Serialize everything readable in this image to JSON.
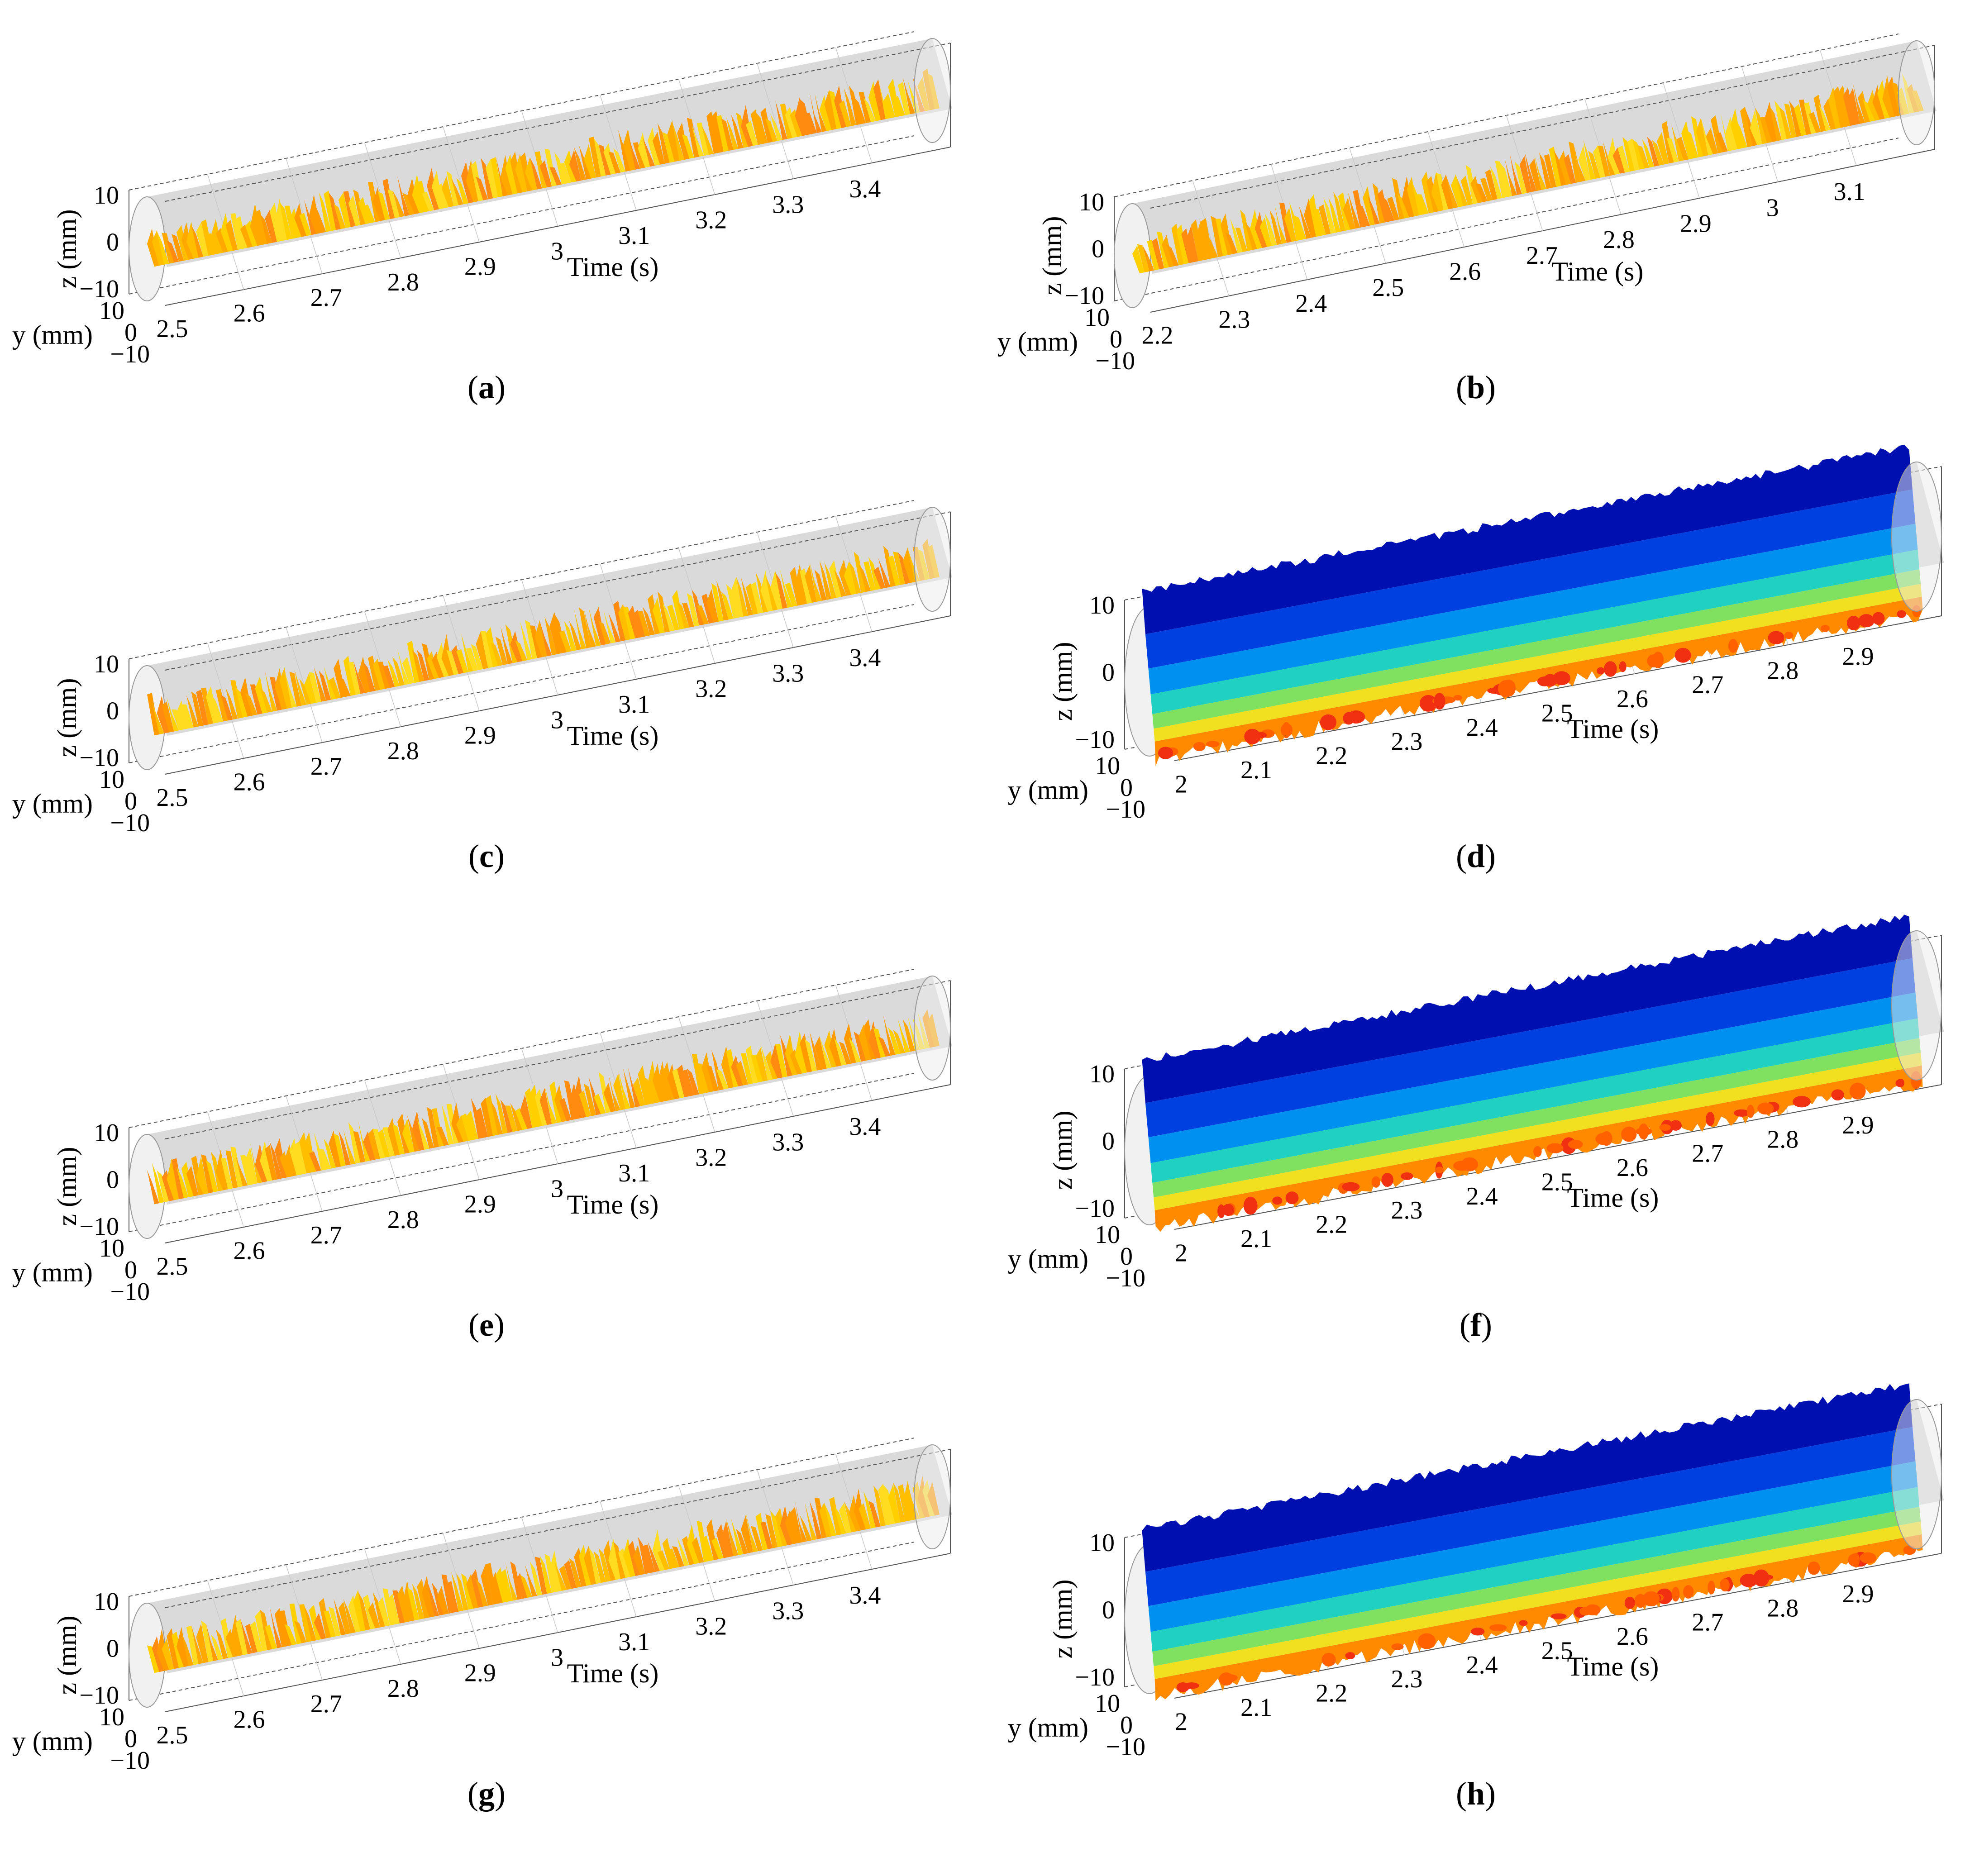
{
  "figure": {
    "panels": [
      {
        "id": "a",
        "caption_letter": "a",
        "type": "3d-surface",
        "variant": "rivulet",
        "palette": "yellow-orange",
        "time_ticks": [
          "2.5",
          "2.6",
          "2.7",
          "2.8",
          "2.9",
          "3",
          "3.1",
          "3.2",
          "3.3",
          "3.4"
        ],
        "z_ticks": [
          "10",
          "0",
          "−10"
        ],
        "y_ticks": [
          "10",
          "0",
          "−10"
        ],
        "xlabel": "Time (s)",
        "ylabel": "y (mm)",
        "zlabel": "z (mm)"
      },
      {
        "id": "b",
        "caption_letter": "b",
        "type": "3d-surface",
        "variant": "rivulet",
        "palette": "yellow-orange",
        "time_ticks": [
          "2.2",
          "2.3",
          "2.4",
          "2.5",
          "2.6",
          "2.7",
          "2.8",
          "2.9",
          "3",
          "3.1"
        ],
        "z_ticks": [
          "10",
          "0",
          "−10"
        ],
        "y_ticks": [
          "10",
          "0",
          "−10"
        ],
        "xlabel": "Time (s)",
        "ylabel": "y (mm)",
        "zlabel": "z (mm)"
      },
      {
        "id": "c",
        "caption_letter": "c",
        "type": "3d-surface",
        "variant": "rivulet",
        "palette": "yellow-orange",
        "time_ticks": [
          "2.5",
          "2.6",
          "2.7",
          "2.8",
          "2.9",
          "3",
          "3.1",
          "3.2",
          "3.3",
          "3.4"
        ],
        "z_ticks": [
          "10",
          "0",
          "−10"
        ],
        "y_ticks": [
          "10",
          "0",
          "−10"
        ],
        "xlabel": "Time (s)",
        "ylabel": "y (mm)",
        "zlabel": "z (mm)"
      },
      {
        "id": "d",
        "caption_letter": "d",
        "type": "3d-surface",
        "variant": "filled",
        "palette": "jet",
        "time_ticks": [
          "2",
          "2.1",
          "2.2",
          "2.3",
          "2.4",
          "2.5",
          "2.6",
          "2.7",
          "2.8",
          "2.9"
        ],
        "z_ticks": [
          "10",
          "0",
          "−10"
        ],
        "y_ticks": [
          "10",
          "0",
          "−10"
        ],
        "xlabel": "Time (s)",
        "ylabel": "y (mm)",
        "zlabel": "z (mm)"
      },
      {
        "id": "e",
        "caption_letter": "e",
        "type": "3d-surface",
        "variant": "rivulet",
        "palette": "yellow-orange",
        "time_ticks": [
          "2.5",
          "2.6",
          "2.7",
          "2.8",
          "2.9",
          "3",
          "3.1",
          "3.2",
          "3.3",
          "3.4"
        ],
        "z_ticks": [
          "10",
          "0",
          "−10"
        ],
        "y_ticks": [
          "10",
          "0",
          "−10"
        ],
        "xlabel": "Time (s)",
        "ylabel": "y (mm)",
        "zlabel": "z (mm)"
      },
      {
        "id": "f",
        "caption_letter": "f",
        "type": "3d-surface",
        "variant": "filled",
        "palette": "jet",
        "time_ticks": [
          "2",
          "2.1",
          "2.2",
          "2.3",
          "2.4",
          "2.5",
          "2.6",
          "2.7",
          "2.8",
          "2.9"
        ],
        "z_ticks": [
          "10",
          "0",
          "−10"
        ],
        "y_ticks": [
          "10",
          "0",
          "−10"
        ],
        "xlabel": "Time (s)",
        "ylabel": "y (mm)",
        "zlabel": "z (mm)"
      },
      {
        "id": "g",
        "caption_letter": "g",
        "type": "3d-surface",
        "variant": "rivulet",
        "palette": "yellow-orange",
        "time_ticks": [
          "2.5",
          "2.6",
          "2.7",
          "2.8",
          "2.9",
          "3",
          "3.1",
          "3.2",
          "3.3",
          "3.4"
        ],
        "z_ticks": [
          "10",
          "0",
          "−10"
        ],
        "y_ticks": [
          "10",
          "0",
          "−10"
        ],
        "xlabel": "Time (s)",
        "ylabel": "y (mm)",
        "zlabel": "z (mm)"
      },
      {
        "id": "h",
        "caption_letter": "h",
        "type": "3d-surface",
        "variant": "filled",
        "palette": "jet",
        "time_ticks": [
          "2",
          "2.1",
          "2.2",
          "2.3",
          "2.4",
          "2.5",
          "2.6",
          "2.7",
          "2.8",
          "2.9"
        ],
        "z_ticks": [
          "10",
          "0",
          "−10"
        ],
        "y_ticks": [
          "10",
          "0",
          "−10"
        ],
        "xlabel": "Time (s)",
        "ylabel": "y (mm)",
        "zlabel": "z (mm)"
      }
    ]
  },
  "chart_data": [
    {
      "type": "3d-surface",
      "panel": "a",
      "x": {
        "label": "Time (s)",
        "range": [
          2.5,
          3.45
        ]
      },
      "y": {
        "label": "y (mm)",
        "range": [
          -10,
          10
        ]
      },
      "z": {
        "label": "z (mm)",
        "range": [
          -10,
          10
        ]
      },
      "grid": true
    },
    {
      "type": "3d-surface",
      "panel": "b",
      "x": {
        "label": "Time (s)",
        "range": [
          2.2,
          3.15
        ]
      },
      "y": {
        "label": "y (mm)",
        "range": [
          -10,
          10
        ]
      },
      "z": {
        "label": "z (mm)",
        "range": [
          -10,
          10
        ]
      },
      "grid": true
    },
    {
      "type": "3d-surface",
      "panel": "c",
      "x": {
        "label": "Time (s)",
        "range": [
          2.5,
          3.45
        ]
      },
      "y": {
        "label": "y (mm)",
        "range": [
          -10,
          10
        ]
      },
      "z": {
        "label": "z (mm)",
        "range": [
          -10,
          10
        ]
      },
      "grid": true
    },
    {
      "type": "3d-surface",
      "panel": "d",
      "x": {
        "label": "Time (s)",
        "range": [
          2.0,
          2.95
        ]
      },
      "y": {
        "label": "y (mm)",
        "range": [
          -10,
          10
        ]
      },
      "z": {
        "label": "z (mm)",
        "range": [
          -10,
          10
        ]
      },
      "grid": true
    },
    {
      "type": "3d-surface",
      "panel": "e",
      "x": {
        "label": "Time (s)",
        "range": [
          2.5,
          3.45
        ]
      },
      "y": {
        "label": "y (mm)",
        "range": [
          -10,
          10
        ]
      },
      "z": {
        "label": "z (mm)",
        "range": [
          -10,
          10
        ]
      },
      "grid": true
    },
    {
      "type": "3d-surface",
      "panel": "f",
      "x": {
        "label": "Time (s)",
        "range": [
          2.0,
          2.95
        ]
      },
      "y": {
        "label": "y (mm)",
        "range": [
          -10,
          10
        ]
      },
      "z": {
        "label": "z (mm)",
        "range": [
          -10,
          10
        ]
      },
      "grid": true
    },
    {
      "type": "3d-surface",
      "panel": "g",
      "x": {
        "label": "Time (s)",
        "range": [
          2.5,
          3.45
        ]
      },
      "y": {
        "label": "y (mm)",
        "range": [
          -10,
          10
        ]
      },
      "z": {
        "label": "z (mm)",
        "range": [
          -10,
          10
        ]
      },
      "grid": true
    },
    {
      "type": "3d-surface",
      "panel": "h",
      "x": {
        "label": "Time (s)",
        "range": [
          2.0,
          2.95
        ]
      },
      "y": {
        "label": "y (mm)",
        "range": [
          -10,
          10
        ]
      },
      "z": {
        "label": "z (mm)",
        "range": [
          -10,
          10
        ]
      },
      "grid": true
    }
  ]
}
